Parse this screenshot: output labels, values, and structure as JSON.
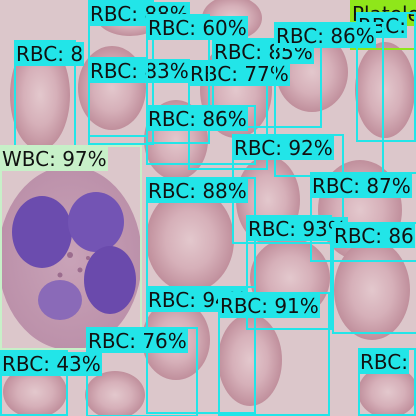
{
  "colors": {
    "rbc_box": "#22e5e8",
    "wbc_box": "#c7f0c8",
    "platelet_box": "#8fe61a",
    "label_text": "#111111",
    "background": "#d9c3c8",
    "rbc_cell": "#c99aa6",
    "wbc_cytoplasm": "#c79bb3",
    "wbc_nucleus": "#6f4fb0"
  },
  "detections": [
    {
      "id": "platelet-top-right",
      "class": "Platelets",
      "label": "Platelets",
      "confidence": null,
      "color_key": "platelet_box"
    },
    {
      "id": "rbc-top-right-edge",
      "class": "RBC",
      "label": "RBC:",
      "confidence": null,
      "color_key": "rbc_box"
    },
    {
      "id": "rbc-88-top",
      "class": "RBC",
      "label": "RBC: 88%",
      "confidence": 88,
      "color_key": "rbc_box"
    },
    {
      "id": "rbc-83",
      "class": "RBC",
      "label": "RBC: 83%",
      "confidence": 83,
      "color_key": "rbc_box"
    },
    {
      "id": "rbc-85",
      "class": "RBC",
      "label": "RBC: 85%",
      "confidence": 85,
      "color_key": "rbc_box"
    },
    {
      "id": "rbc-77",
      "class": "RBC",
      "label": "RBC: 77%",
      "confidence": 77,
      "color_key": "rbc_box"
    },
    {
      "id": "rbc-left-top",
      "class": "RBC",
      "label": "RBC: 8",
      "confidence": null,
      "color_key": "rbc_box"
    },
    {
      "id": "rbc-60",
      "class": "RBC",
      "label": "RBC: 60%",
      "confidence": 60,
      "color_key": "rbc_box"
    },
    {
      "id": "rbc-86-a",
      "class": "RBC",
      "label": "RBC: 86%",
      "confidence": 86,
      "color_key": "rbc_box"
    },
    {
      "id": "rbc-86-b",
      "class": "RBC",
      "label": "RBC: 86%",
      "confidence": 86,
      "color_key": "rbc_box"
    },
    {
      "id": "rbc-92",
      "class": "RBC",
      "label": "RBC: 92%",
      "confidence": 92,
      "color_key": "rbc_box"
    },
    {
      "id": "wbc-97",
      "class": "WBC",
      "label": "WBC: 97%",
      "confidence": 97,
      "color_key": "wbc_box"
    },
    {
      "id": "rbc-88-mid",
      "class": "RBC",
      "label": "RBC: 88%",
      "confidence": 88,
      "color_key": "rbc_box"
    },
    {
      "id": "rbc-87",
      "class": "RBC",
      "label": "RBC: 87%",
      "confidence": 87,
      "color_key": "rbc_box"
    },
    {
      "id": "rbc-93",
      "class": "RBC",
      "label": "RBC: 93%",
      "confidence": 93,
      "color_key": "rbc_box"
    },
    {
      "id": "rbc-86-c",
      "class": "RBC",
      "label": "RBC: 86",
      "confidence": null,
      "color_key": "rbc_box"
    },
    {
      "id": "rbc-94",
      "class": "RBC",
      "label": "RBC: 94%",
      "confidence": 94,
      "color_key": "rbc_box"
    },
    {
      "id": "rbc-91",
      "class": "RBC",
      "label": "RBC: 91%",
      "confidence": 91,
      "color_key": "rbc_box"
    },
    {
      "id": "rbc-76",
      "class": "RBC",
      "label": "RBC: 76%",
      "confidence": 76,
      "color_key": "rbc_box"
    },
    {
      "id": "rbc-43",
      "class": "RBC",
      "label": "RBC: 43%",
      "confidence": 43,
      "color_key": "rbc_box"
    },
    {
      "id": "rbc-bottom-right",
      "class": "RBC",
      "label": "RBC:",
      "confidence": null,
      "color_key": "rbc_box"
    }
  ]
}
